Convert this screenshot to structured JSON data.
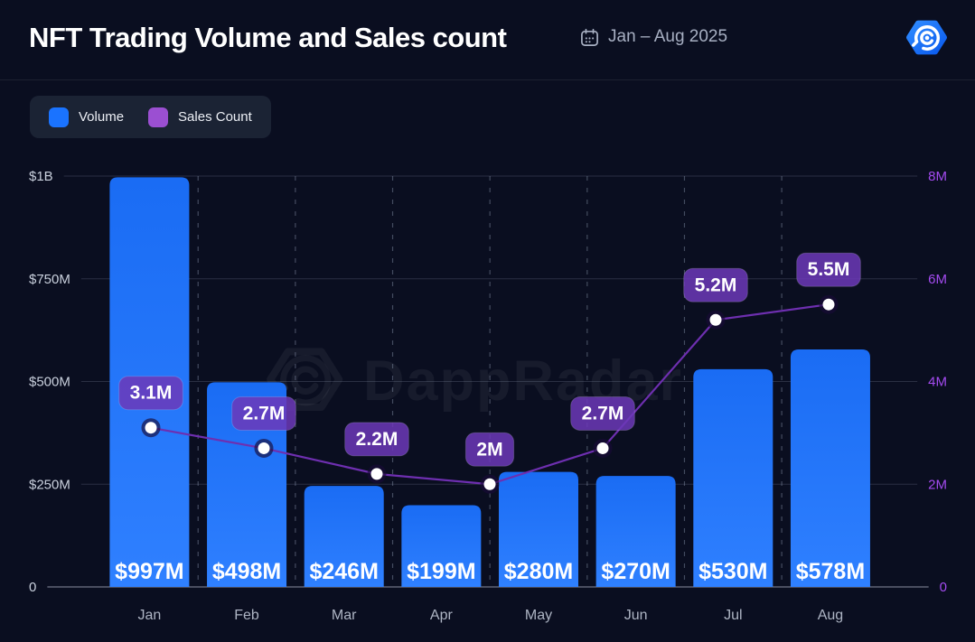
{
  "header": {
    "title": "NFT Trading Volume and Sales count",
    "date_range": "Jan – Aug 2025"
  },
  "legend": [
    {
      "label": "Volume",
      "color": "#1a73ff"
    },
    {
      "label": "Sales Count",
      "color": "#9b4fd2"
    }
  ],
  "watermark": {
    "text": "DappRadar"
  },
  "chart_data": {
    "type": "bar",
    "title": "NFT Trading Volume and Sales count",
    "subtitle": "Jan – Aug 2025",
    "categories": [
      "Jan",
      "Feb",
      "Mar",
      "Apr",
      "May",
      "Jun",
      "Jul",
      "Aug"
    ],
    "series": [
      {
        "name": "Volume",
        "type": "bar",
        "axis": "left",
        "unit": "USD millions",
        "values": [
          997,
          498,
          246,
          199,
          280,
          270,
          530,
          578
        ],
        "labels": [
          "$997M",
          "$498M",
          "$246M",
          "$199M",
          "$280M",
          "$270M",
          "$530M",
          "$578M"
        ],
        "color": "#1f72fb"
      },
      {
        "name": "Sales Count",
        "type": "line",
        "axis": "right",
        "unit": "millions",
        "values": [
          3.1,
          2.7,
          2.2,
          2,
          2.7,
          5.2,
          5.5
        ],
        "labels": [
          "3.1M",
          "2.7M",
          "2.2M",
          "2M",
          "2.7M",
          "5.2M",
          "5.5M"
        ],
        "color": "#6e2fb0",
        "note": "7 points drawn evenly spaced across the 8 month columns, as rendered in source"
      }
    ],
    "left_axis": {
      "ticks": [
        "$1B",
        "$750M",
        "$500M",
        "$250M",
        "0"
      ],
      "max": 1000,
      "color": "#c9d0dd"
    },
    "right_axis": {
      "ticks": [
        "8M",
        "6M",
        "4M",
        "2M",
        "0"
      ],
      "max": 8,
      "color": "#a44bf0"
    },
    "grid": {
      "horizontal": true,
      "vertical_dashed": true
    },
    "legend_position": "top-left"
  },
  "colors": {
    "background": "#0a0e20",
    "bar_top": "#1a6cf4",
    "bar_bottom": "#2f80ff",
    "bar_value_text": "#ffffff",
    "line": "#6e2fb0",
    "point_fill": "#ffffff",
    "point_halo": "rgba(24,10,56,0.65)",
    "badge_fill": "rgba(108,56,184,0.85)",
    "badge_border": "rgba(255,255,255,0.16)",
    "badge_text": "#ffffff",
    "month_label": "#aeb5c4",
    "gridline": "rgba(160,170,192,0.22)",
    "baseline": "rgba(180,188,204,0.6)",
    "dashed_gridline": "rgba(148,160,184,0.42)",
    "watermark": "rgba(255,255,255,0.055)"
  }
}
